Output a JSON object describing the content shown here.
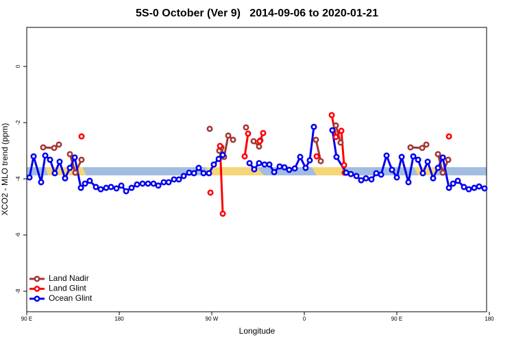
{
  "chart_data": {
    "type": "line",
    "title": "5S-0 October (Ver 9)   2014-09-06 to 2020-01-21",
    "x_label": "Longitude",
    "y_label": "XCO2 - MLO trend (ppm)",
    "xlim": [
      90,
      537.3
    ],
    "xticks": [
      {
        "value": 90,
        "label": "90 E"
      },
      180,
      {
        "value": 270,
        "label": "90 W"
      },
      {
        "value": 360,
        "label": "0"
      },
      {
        "value": 450,
        "label": "90 E"
      },
      {
        "value": 540,
        "label": "180"
      }
    ],
    "ylim": [
      -8.73,
      1.39
    ],
    "yticks": [
      0,
      -2,
      -4,
      -6,
      -8
    ],
    "legend": "bottom-left",
    "series": [
      {
        "name": "Land Nadir",
        "color": "#a33636",
        "x": [
          106,
          116.7,
          121.3,
          null,
          132,
          137.3,
          143.3,
          null,
          268,
          null,
          277.3,
          279.3,
          282,
          286,
          290.7,
          null,
          303.3,
          null,
          310.7,
          316,
          317.3,
          null,
          371.3,
          376,
          null,
          390.7,
          395.3,
          null,
          463.3,
          474.7,
          478.7,
          null,
          490,
          494.7,
          500
        ],
        "values": [
          -2.88,
          -2.9,
          -2.78,
          null,
          -3.12,
          -3.78,
          -3.32,
          null,
          -2.22,
          null,
          -3.0,
          -2.88,
          -3.22,
          -2.46,
          -2.61,
          null,
          -2.17,
          null,
          -2.66,
          -2.85,
          -2.63,
          null,
          -2.61,
          -3.37,
          null,
          -2.1,
          -2.71,
          null,
          -2.88,
          -2.9,
          -2.78,
          null,
          -3.12,
          -3.78,
          -3.32
        ]
      },
      {
        "name": "Land Glint",
        "color": "#ff0000",
        "x": [
          143.3,
          null,
          268.7,
          null,
          278,
          280.7,
          null,
          302,
          305.3,
          null,
          316.7,
          320,
          null,
          372,
          null,
          386.7,
          390.7,
          396,
          398.7,
          399.3,
          null,
          500.7
        ],
        "values": [
          -2.49,
          null,
          -4.49,
          null,
          -2.83,
          -5.24,
          null,
          -3.2,
          -2.39,
          null,
          -2.66,
          -2.37,
          null,
          -3.2,
          null,
          -1.73,
          -2.51,
          -2.29,
          -3.51,
          -3.78,
          null,
          -2.49
        ]
      },
      {
        "name": "Ocean Glint",
        "color": "#0000ee",
        "x": [
          92.7,
          96.7,
          104,
          108,
          112.7,
          117.3,
          122,
          127.3,
          132,
          136.7,
          142.7,
          146.7,
          151.3,
          157.3,
          162,
          167.3,
          172,
          177.3,
          182,
          186.7,
          192,
          197.3,
          202.7,
          208,
          213.3,
          218,
          223.3,
          228,
          233.3,
          238,
          242.7,
          248,
          252.7,
          257.3,
          262,
          267.3,
          272,
          276.7,
          280.7,
          null,
          306.7,
          311.3,
          316,
          321.3,
          326,
          330.7,
          336,
          340.7,
          345.3,
          350.7,
          356,
          361.3,
          365.3,
          369.3,
          null,
          387.3,
          391.3,
          400.7,
          405.3,
          410.7,
          415.3,
          420,
          425.3,
          430,
          434.7,
          440,
          445.3,
          450,
          454.7,
          461.3,
          466,
          470.7,
          475.3,
          480,
          485.3,
          490,
          494.7,
          500.7,
          504.7,
          509.3,
          515.3,
          520,
          525.3,
          530,
          535.3
        ],
        "values": [
          -3.95,
          -3.2,
          -4.12,
          -3.17,
          -3.32,
          -3.8,
          -3.39,
          -3.98,
          -3.61,
          -3.24,
          -4.32,
          -4.17,
          -4.07,
          -4.29,
          -4.37,
          -4.32,
          -4.29,
          -4.34,
          -4.24,
          -4.44,
          -4.32,
          -4.2,
          -4.17,
          -4.17,
          -4.17,
          -4.24,
          -4.12,
          -4.12,
          -4.02,
          -4.02,
          -3.9,
          -3.78,
          -3.8,
          -3.61,
          -3.8,
          -3.8,
          -3.49,
          -3.29,
          -3.15,
          null,
          -3.44,
          -3.66,
          -3.44,
          -3.49,
          -3.49,
          -3.76,
          -3.56,
          -3.59,
          -3.68,
          -3.63,
          -3.22,
          -3.61,
          -3.34,
          -2.15,
          null,
          -2.27,
          -3.22,
          -3.78,
          -3.83,
          -3.9,
          -4.05,
          -3.98,
          -4.02,
          -3.8,
          -3.85,
          -3.17,
          -3.68,
          -3.95,
          -3.22,
          -4.12,
          -3.2,
          -3.32,
          -3.8,
          -3.39,
          -3.98,
          -3.61,
          -3.24,
          -4.32,
          -4.17,
          -4.07,
          -4.29,
          -4.37,
          -4.32,
          -4.27,
          -4.34
        ]
      }
    ]
  }
}
